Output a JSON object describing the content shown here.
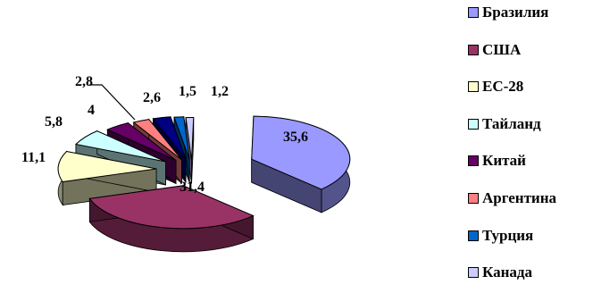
{
  "chart_data": {
    "type": "pie",
    "title": "",
    "categories": [
      "Бразилия",
      "США",
      "ЕС-28",
      "Тайланд",
      "Китай",
      "Аргентина",
      "Турция",
      "Канада",
      ""
    ],
    "values": [
      35.6,
      31.4,
      11.1,
      5.8,
      4,
      2.6,
      1.5,
      1.2,
      2.8
    ],
    "value_labels": [
      "35,6",
      "31,4",
      "11,1",
      "5,8",
      "4",
      "2,6",
      "1,5",
      "1,2",
      "2,8"
    ],
    "legend": {
      "placement": "right",
      "items": [
        {
          "label": "Бразилия",
          "color": "#9999ff"
        },
        {
          "label": "США",
          "color": "#993366"
        },
        {
          "label": "ЕС-28",
          "color": "#ffffcc"
        },
        {
          "label": "Тайланд",
          "color": "#ccffff"
        },
        {
          "label": "Китай",
          "color": "#660066"
        },
        {
          "label": "Аргентина",
          "color": "#ff8080"
        },
        {
          "label": "Турция",
          "color": "#0066cc"
        },
        {
          "label": "Канада",
          "color": "#ccccff"
        }
      ]
    },
    "slice_colors": [
      "#9999ff",
      "#993366",
      "#ffffcc",
      "#ccffff",
      "#660066",
      "#ff8080",
      "#0066cc",
      "#ccccff",
      "#000080"
    ],
    "exploded": true,
    "three_d": true
  }
}
